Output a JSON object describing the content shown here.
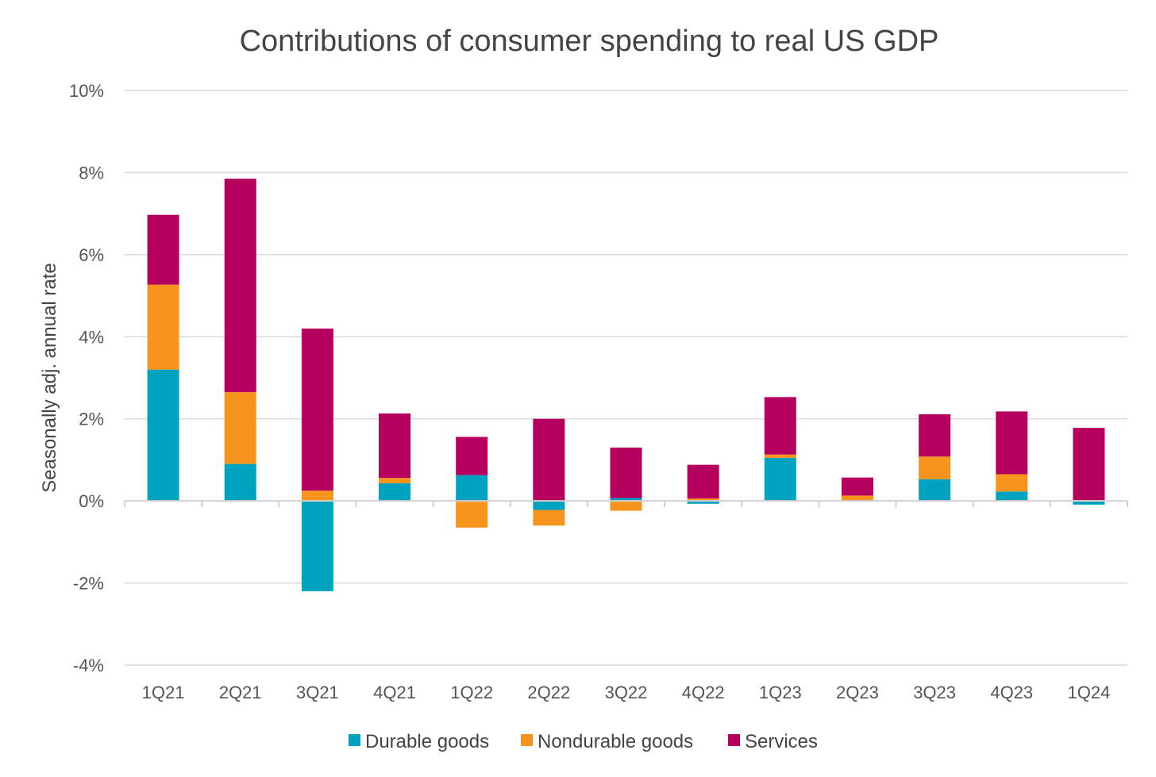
{
  "chart_data": {
    "type": "bar",
    "stacked": true,
    "title": "Contributions of consumer spending to real US GDP",
    "xlabel": "",
    "ylabel": "Seasonally adj. annual rate",
    "ylim": [
      -4,
      10
    ],
    "yticks": [
      10,
      8,
      6,
      4,
      2,
      0,
      -2,
      -4
    ],
    "ytick_labels": [
      "10%",
      "8%",
      "6%",
      "4%",
      "2%",
      "0%",
      "-2%",
      "-4%"
    ],
    "grid": true,
    "legend_position": "bottom",
    "categories": [
      "1Q21",
      "2Q21",
      "3Q21",
      "4Q21",
      "1Q22",
      "2Q22",
      "3Q22",
      "4Q22",
      "1Q23",
      "2Q23",
      "3Q23",
      "4Q23",
      "1Q24"
    ],
    "series": [
      {
        "name": "Durable goods",
        "color": "#00A3BF",
        "values": [
          3.2,
          0.9,
          -2.2,
          0.43,
          0.63,
          -0.22,
          0.07,
          -0.07,
          1.05,
          0.0,
          0.53,
          0.23,
          -0.09
        ]
      },
      {
        "name": "Nondurable goods",
        "color": "#F7941D",
        "values": [
          2.07,
          1.75,
          0.25,
          0.13,
          -0.65,
          -0.38,
          -0.24,
          0.06,
          0.08,
          0.13,
          0.55,
          0.42,
          0.02
        ]
      },
      {
        "name": "Services",
        "color": "#B5005E",
        "values": [
          1.7,
          5.2,
          3.95,
          1.57,
          0.93,
          2.0,
          1.23,
          0.82,
          1.4,
          0.44,
          1.03,
          1.53,
          1.76
        ]
      }
    ]
  }
}
